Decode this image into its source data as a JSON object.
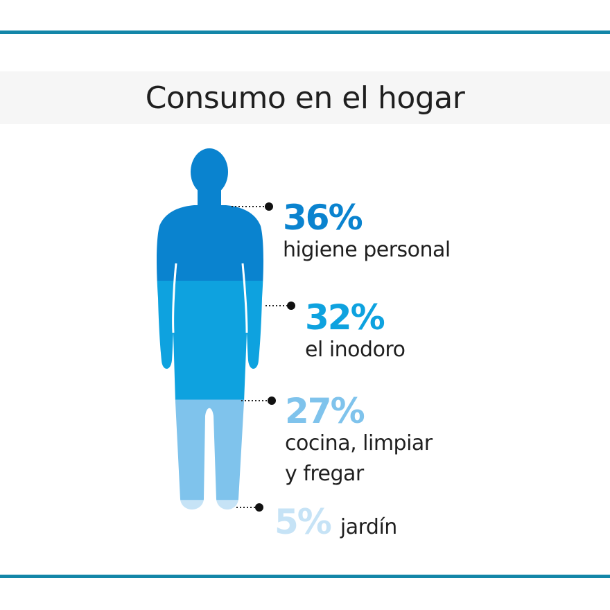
{
  "chart_data": {
    "type": "pie",
    "title": "Consumo en el hogar",
    "categories": [
      "higiene personal",
      "el inodoro",
      "cocina, limpiar y fregar",
      "jardín"
    ],
    "values": [
      36,
      32,
      27,
      5
    ],
    "labels": [
      {
        "value_text": "36",
        "unit": "%",
        "desc": "higiene personal"
      },
      {
        "value_text": "32",
        "unit": "%",
        "desc": "el inodoro"
      },
      {
        "value_text": "27",
        "unit": "%",
        "desc_lines": [
          "cocina, limpiar",
          "y fregar"
        ]
      },
      {
        "value_text": "5",
        "unit": "%",
        "desc": "jardín"
      }
    ],
    "colors": [
      "#0a83cf",
      "#0ea2df",
      "#7fc3ec",
      "#c6e3f6"
    ]
  }
}
